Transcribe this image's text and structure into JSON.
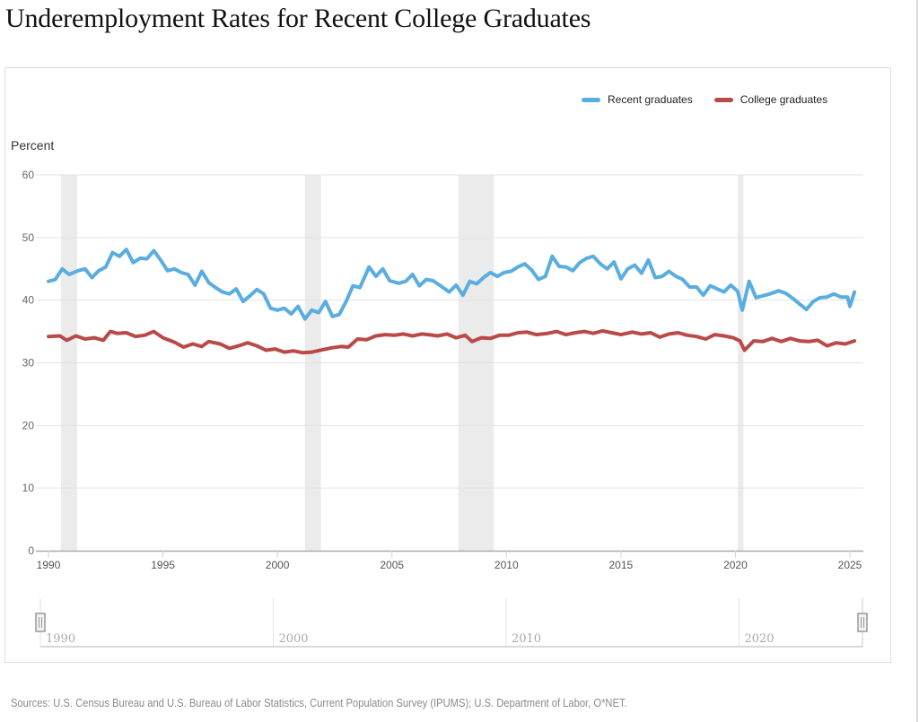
{
  "page": {
    "title": "Underemployment Rates for Recent College Graduates",
    "sources": "Sources: U.S. Census Bureau and U.S. Bureau of Labor Statistics, Current Population Survey (IPUMS); U.S. Department of Labor, O*NET."
  },
  "navigator": {
    "labels": [
      "1990",
      "2000",
      "2010",
      "2020"
    ],
    "range": [
      1990,
      2025.3
    ]
  },
  "chart_data": {
    "type": "line",
    "title": "Underemployment Rates for Recent College Graduates",
    "xlabel": "",
    "ylabel": "Percent",
    "xlim": [
      1990,
      2025.3
    ],
    "ylim": [
      0,
      60
    ],
    "xticks": [
      1990,
      1995,
      2000,
      2005,
      2010,
      2015,
      2020,
      2025
    ],
    "xtick_labels": [
      "1990",
      "1995",
      "2000",
      "2005",
      "2010",
      "2015",
      "2020",
      "2025"
    ],
    "yticks": [
      0,
      10,
      20,
      30,
      40,
      50,
      60
    ],
    "ytick_labels": [
      "0",
      "10",
      "20",
      "30",
      "40",
      "50",
      "60"
    ],
    "grid": true,
    "legend_position": "top-right",
    "recessions": [
      [
        1990.55,
        1991.25
      ],
      [
        2001.2,
        2001.9
      ],
      [
        2007.9,
        2009.45
      ],
      [
        2020.1,
        2020.35
      ]
    ],
    "series": [
      {
        "name": "Recent graduates",
        "color": "#5aade0",
        "x": [
          1990.0,
          1990.3,
          1990.6,
          1990.9,
          1991.3,
          1991.6,
          1991.9,
          1992.2,
          1992.5,
          1992.8,
          1993.1,
          1993.4,
          1993.7,
          1994.0,
          1994.3,
          1994.6,
          1994.9,
          1995.2,
          1995.5,
          1995.8,
          1996.1,
          1996.4,
          1996.7,
          1997.0,
          1997.3,
          1997.6,
          1997.9,
          1998.2,
          1998.5,
          1998.8,
          1999.1,
          1999.4,
          1999.7,
          2000.0,
          2000.3,
          2000.6,
          2000.9,
          2001.2,
          2001.5,
          2001.8,
          2002.1,
          2002.4,
          2002.7,
          2003.0,
          2003.3,
          2003.6,
          2004.0,
          2004.3,
          2004.6,
          2004.9,
          2005.3,
          2005.6,
          2005.9,
          2006.2,
          2006.5,
          2006.8,
          2007.2,
          2007.5,
          2007.8,
          2008.1,
          2008.4,
          2008.7,
          2009.0,
          2009.3,
          2009.6,
          2009.9,
          2010.2,
          2010.5,
          2010.8,
          2011.1,
          2011.4,
          2011.7,
          2012.0,
          2012.3,
          2012.6,
          2012.9,
          2013.2,
          2013.5,
          2013.8,
          2014.1,
          2014.4,
          2014.7,
          2015.0,
          2015.3,
          2015.6,
          2015.9,
          2016.2,
          2016.5,
          2016.8,
          2017.1,
          2017.4,
          2017.7,
          2018.0,
          2018.3,
          2018.6,
          2018.9,
          2019.2,
          2019.5,
          2019.8,
          2020.1,
          2020.3,
          2020.6,
          2020.9,
          2021.2,
          2021.5,
          2021.9,
          2022.2,
          2022.5,
          2022.8,
          2023.1,
          2023.4,
          2023.7,
          2024.0,
          2024.3,
          2024.6,
          2024.9,
          2025.0,
          2025.2
        ],
        "values": [
          43.0,
          43.3,
          45.0,
          44.1,
          44.7,
          45.0,
          43.6,
          44.7,
          45.3,
          47.6,
          47.0,
          48.1,
          46.0,
          46.7,
          46.6,
          47.9,
          46.4,
          44.7,
          45.0,
          44.4,
          44.1,
          42.4,
          44.6,
          42.8,
          42.0,
          41.3,
          41.0,
          41.8,
          39.8,
          40.7,
          41.7,
          41.0,
          38.7,
          38.4,
          38.7,
          37.8,
          39.0,
          37.0,
          38.4,
          38.0,
          39.8,
          37.4,
          37.7,
          39.8,
          42.3,
          42.0,
          45.3,
          43.8,
          45.0,
          43.1,
          42.7,
          43.0,
          44.1,
          42.3,
          43.3,
          43.1,
          42.1,
          41.3,
          42.4,
          40.8,
          43.0,
          42.6,
          43.6,
          44.4,
          43.8,
          44.4,
          44.6,
          45.3,
          45.8,
          44.8,
          43.3,
          43.8,
          47.0,
          45.4,
          45.3,
          44.7,
          46.0,
          46.7,
          47.0,
          45.8,
          45.0,
          46.1,
          43.4,
          45.0,
          45.6,
          44.3,
          46.4,
          43.6,
          43.8,
          44.6,
          43.8,
          43.3,
          42.1,
          42.1,
          40.8,
          42.3,
          41.8,
          41.3,
          42.4,
          41.4,
          38.4,
          43.0,
          40.4,
          40.7,
          41.0,
          41.5,
          41.1,
          40.3,
          39.4,
          38.5,
          39.8,
          40.4,
          40.5,
          41.0,
          40.5,
          40.5,
          39.0,
          41.3
        ]
      },
      {
        "name": "College graduates",
        "color": "#b94a48",
        "x": [
          1990.0,
          1990.5,
          1990.8,
          1991.2,
          1991.6,
          1992.0,
          1992.4,
          1992.7,
          1993.0,
          1993.4,
          1993.8,
          1994.2,
          1994.6,
          1995.0,
          1995.5,
          1995.9,
          1996.3,
          1996.7,
          1997.0,
          1997.5,
          1997.9,
          1998.3,
          1998.7,
          1999.1,
          1999.5,
          1999.9,
          2000.3,
          2000.7,
          2001.1,
          2001.5,
          2002.0,
          2002.4,
          2002.8,
          2003.1,
          2003.5,
          2003.9,
          2004.3,
          2004.7,
          2005.1,
          2005.5,
          2005.9,
          2006.3,
          2006.6,
          2007.0,
          2007.4,
          2007.8,
          2008.2,
          2008.5,
          2008.9,
          2009.3,
          2009.7,
          2010.1,
          2010.5,
          2010.9,
          2011.3,
          2011.8,
          2012.2,
          2012.6,
          2013.0,
          2013.4,
          2013.8,
          2014.2,
          2014.6,
          2015.0,
          2015.5,
          2015.9,
          2016.3,
          2016.7,
          2017.1,
          2017.5,
          2017.9,
          2018.3,
          2018.7,
          2019.1,
          2019.5,
          2019.9,
          2020.2,
          2020.4,
          2020.8,
          2021.2,
          2021.6,
          2022.0,
          2022.4,
          2022.8,
          2023.2,
          2023.6,
          2024.0,
          2024.4,
          2024.8,
          2025.2
        ],
        "values": [
          34.2,
          34.3,
          33.6,
          34.3,
          33.8,
          34.0,
          33.6,
          35.0,
          34.7,
          34.8,
          34.2,
          34.4,
          35.0,
          34.0,
          33.3,
          32.5,
          33.0,
          32.6,
          33.4,
          33.0,
          32.3,
          32.7,
          33.2,
          32.7,
          32.0,
          32.2,
          31.7,
          31.9,
          31.6,
          31.7,
          32.1,
          32.4,
          32.6,
          32.5,
          33.8,
          33.7,
          34.3,
          34.5,
          34.4,
          34.6,
          34.3,
          34.6,
          34.5,
          34.3,
          34.6,
          34.0,
          34.4,
          33.4,
          34.0,
          33.9,
          34.4,
          34.4,
          34.8,
          34.9,
          34.5,
          34.7,
          35.0,
          34.5,
          34.8,
          35.0,
          34.7,
          35.1,
          34.8,
          34.5,
          34.9,
          34.6,
          34.8,
          34.1,
          34.6,
          34.8,
          34.4,
          34.2,
          33.8,
          34.5,
          34.3,
          34.0,
          33.5,
          32.0,
          33.5,
          33.4,
          33.9,
          33.4,
          33.9,
          33.5,
          33.4,
          33.6,
          32.7,
          33.2,
          33.0,
          33.5
        ]
      }
    ]
  }
}
